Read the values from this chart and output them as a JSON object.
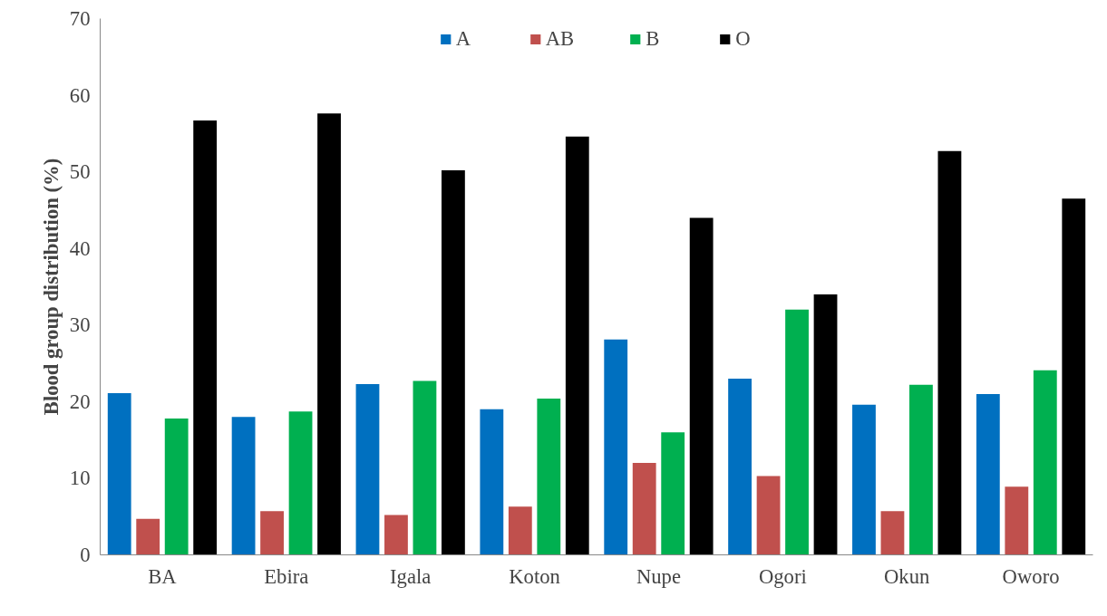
{
  "chart_data": {
    "type": "bar",
    "ylabel": "Blood group distribution (%)",
    "categories": [
      "BA",
      "Ebira",
      "Igala",
      "Koton",
      "Nupe",
      "Ogori",
      "Okun",
      "Oworo"
    ],
    "series": [
      {
        "name": "A",
        "color": "#0070c0",
        "values": [
          21.1,
          18.0,
          22.3,
          19.0,
          28.1,
          23.0,
          19.6,
          21.0
        ]
      },
      {
        "name": "AB",
        "color": "#c0504d",
        "values": [
          4.7,
          5.7,
          5.2,
          6.3,
          12.0,
          10.3,
          5.7,
          8.9
        ]
      },
      {
        "name": "B",
        "color": "#00b050",
        "values": [
          17.8,
          18.7,
          22.7,
          20.4,
          16.0,
          32.0,
          22.2,
          24.1
        ]
      },
      {
        "name": "O",
        "color": "#000000",
        "values": [
          56.7,
          57.6,
          50.2,
          54.6,
          44.0,
          34.0,
          52.7,
          46.5
        ]
      }
    ],
    "ylim": [
      0,
      70
    ],
    "yticks": [
      0,
      10,
      20,
      30,
      40,
      50,
      60,
      70
    ],
    "grid": false,
    "legend": "top"
  }
}
